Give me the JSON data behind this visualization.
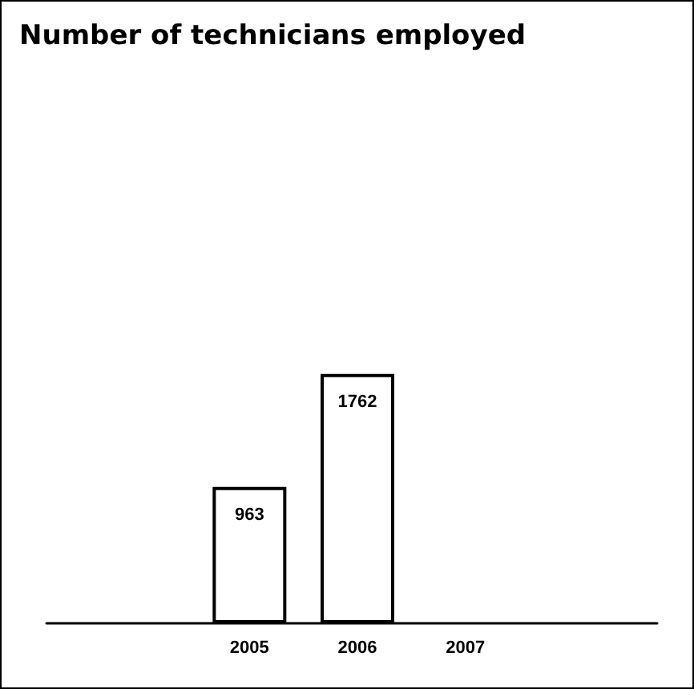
{
  "chart_data": {
    "type": "bar",
    "title": "Number of technicians employed",
    "categories": [
      "2005",
      "2006",
      "2007"
    ],
    "values": [
      963,
      1762,
      null
    ],
    "color": "#ffffff",
    "data_labels": true
  }
}
